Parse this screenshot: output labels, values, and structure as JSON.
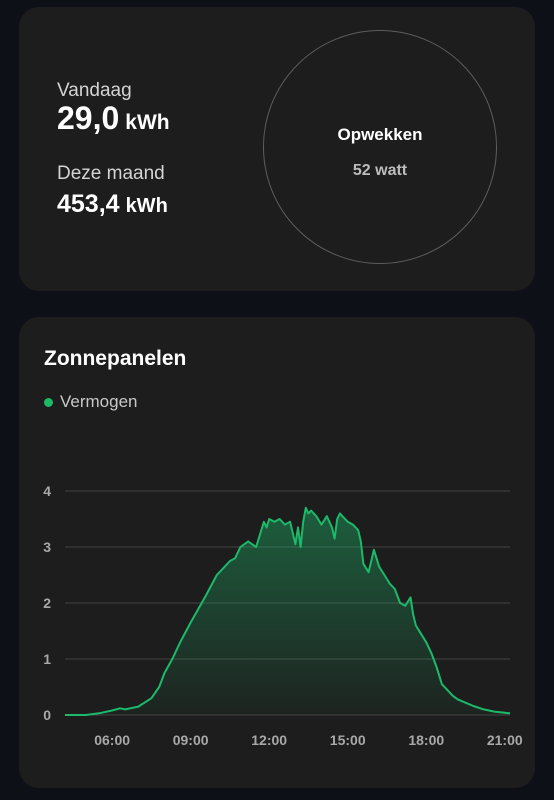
{
  "energy": {
    "today_label": "Vandaag",
    "today_value": "29,0",
    "today_unit": "kWh",
    "month_label": "Deze maand",
    "month_value": "453,4",
    "month_unit": "kWh"
  },
  "ring": {
    "title": "Opwekken",
    "value": "52 watt"
  },
  "chart_card": {
    "title": "Zonnepanelen",
    "legend_label": "Vermogen",
    "accent": "#1db96a"
  },
  "chart_data": {
    "type": "area",
    "title": "Zonnepanelen",
    "xlabel": "",
    "ylabel": "",
    "xlim": [
      4.2,
      21.2
    ],
    "ylim": [
      0,
      4
    ],
    "x_ticks": [
      "06:00",
      "09:00",
      "12:00",
      "15:00",
      "18:00",
      "21:00"
    ],
    "y_ticks": [
      "0",
      "1",
      "2",
      "3",
      "4"
    ],
    "grid": true,
    "legend_position": "top-left",
    "series": [
      {
        "name": "Vermogen",
        "color": "#1db96a",
        "x": [
          4.2,
          5.0,
          5.5,
          6.0,
          6.3,
          6.5,
          7.0,
          7.5,
          7.8,
          8.0,
          8.3,
          8.6,
          9.0,
          9.3,
          9.6,
          10.0,
          10.2,
          10.5,
          10.7,
          10.9,
          11.2,
          11.5,
          11.7,
          11.8,
          11.9,
          12.0,
          12.2,
          12.4,
          12.6,
          12.8,
          13.0,
          13.1,
          13.2,
          13.3,
          13.4,
          13.5,
          13.6,
          13.8,
          14.0,
          14.2,
          14.4,
          14.5,
          14.6,
          14.7,
          14.9,
          15.0,
          15.2,
          15.4,
          15.5,
          15.6,
          15.8,
          16.0,
          16.2,
          16.4,
          16.6,
          16.8,
          17.0,
          17.2,
          17.4,
          17.5,
          17.6,
          17.8,
          18.0,
          18.2,
          18.4,
          18.6,
          18.8,
          19.0,
          19.2,
          19.5,
          19.8,
          20.2,
          20.6,
          21.0,
          21.2
        ],
        "y": [
          0.0,
          0.0,
          0.03,
          0.08,
          0.12,
          0.1,
          0.15,
          0.3,
          0.5,
          0.75,
          1.0,
          1.3,
          1.65,
          1.9,
          2.15,
          2.5,
          2.6,
          2.75,
          2.8,
          3.0,
          3.1,
          3.0,
          3.3,
          3.45,
          3.35,
          3.5,
          3.45,
          3.5,
          3.4,
          3.45,
          3.05,
          3.35,
          3.0,
          3.45,
          3.7,
          3.6,
          3.65,
          3.55,
          3.4,
          3.55,
          3.35,
          3.15,
          3.5,
          3.6,
          3.5,
          3.45,
          3.4,
          3.3,
          3.1,
          2.7,
          2.55,
          2.95,
          2.65,
          2.5,
          2.35,
          2.25,
          2.0,
          1.95,
          2.1,
          1.8,
          1.6,
          1.45,
          1.3,
          1.1,
          0.85,
          0.55,
          0.45,
          0.35,
          0.28,
          0.22,
          0.16,
          0.1,
          0.06,
          0.04,
          0.03
        ]
      }
    ]
  }
}
